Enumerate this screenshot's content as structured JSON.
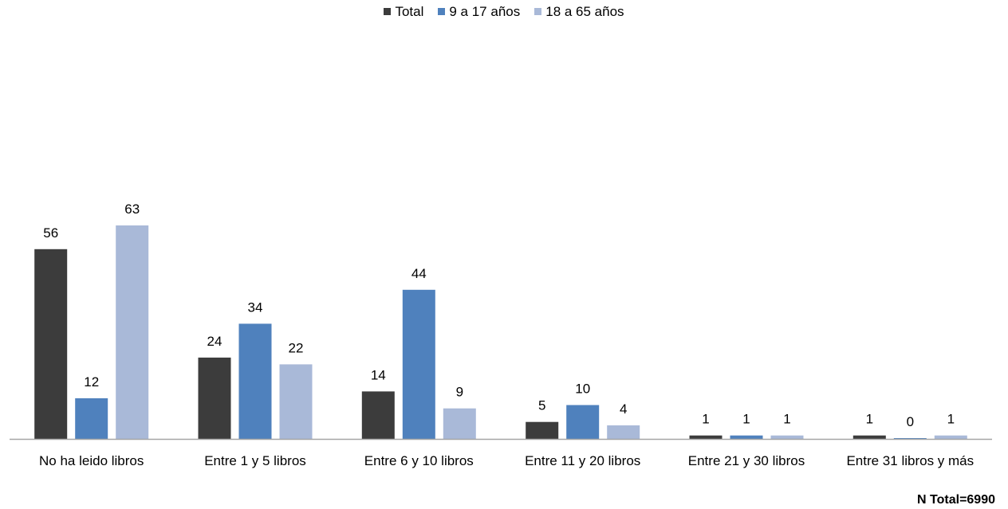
{
  "chart_data": {
    "type": "bar",
    "title": "",
    "xlabel": "",
    "ylabel": "",
    "categories": [
      "No ha leido libros",
      "Entre 1 y 5 libros",
      "Entre 6 y 10 libros",
      "Entre 11 y 20 libros",
      "Entre 21 y 30 libros",
      "Entre 31 libros y más"
    ],
    "series": [
      {
        "name": "Total",
        "color": "#3c3c3c",
        "values": [
          56,
          24,
          14,
          5,
          1,
          1
        ]
      },
      {
        "name": "9 a 17 años",
        "color": "#4f81bd",
        "values": [
          12,
          34,
          44,
          10,
          1,
          0
        ]
      },
      {
        "name": "18 a 65 años",
        "color": "#a9b9d8",
        "values": [
          63,
          22,
          9,
          4,
          1,
          1
        ]
      }
    ],
    "ylim": [
      0,
      63
    ],
    "grid": false,
    "data_labels": true,
    "legend_position": "top-center",
    "axis_color": "#a6a6a6"
  },
  "note": "N Total=6990"
}
